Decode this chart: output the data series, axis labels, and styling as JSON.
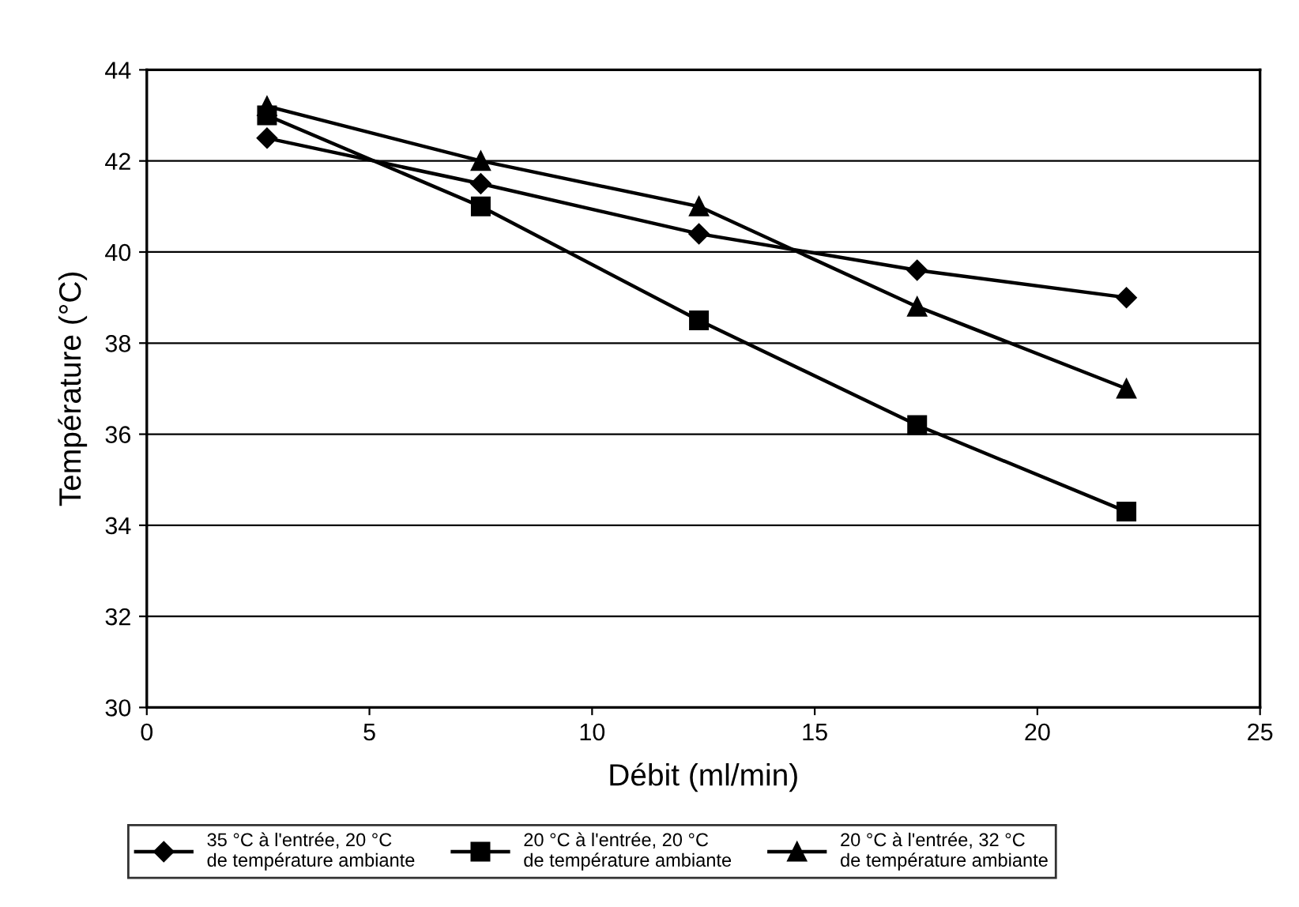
{
  "chart_data": {
    "type": "line",
    "xlabel": "Débit (ml/min)",
    "ylabel": "Température (°C)",
    "xlim": [
      0,
      25
    ],
    "xticks": [
      0,
      5,
      10,
      15,
      20,
      25
    ],
    "ylim": [
      30,
      44
    ],
    "yticks": [
      30,
      32,
      34,
      36,
      38,
      40,
      42,
      44
    ],
    "grid": "y",
    "legend": "bottom",
    "line_style": "solid",
    "x": [
      2.7,
      7.5,
      12.4,
      17.3,
      22
    ],
    "series": [
      {
        "name": "35 °C à l'entrée, 20 °C\nde température ambiante",
        "color": "#000000",
        "marker": "diamond",
        "values": [
          42.5,
          41.5,
          40.4,
          39.6,
          39.0
        ]
      },
      {
        "name": "20 °C à l'entrée, 20 °C\nde température ambiante",
        "color": "#000000",
        "marker": "square",
        "values": [
          43.0,
          41.0,
          38.5,
          36.2,
          34.3
        ]
      },
      {
        "name": "20 °C à l'entrée, 32 °C\nde température ambiante",
        "color": "#000000",
        "marker": "triangle",
        "values": [
          43.2,
          42.0,
          41.0,
          38.8,
          37.0
        ]
      }
    ]
  }
}
